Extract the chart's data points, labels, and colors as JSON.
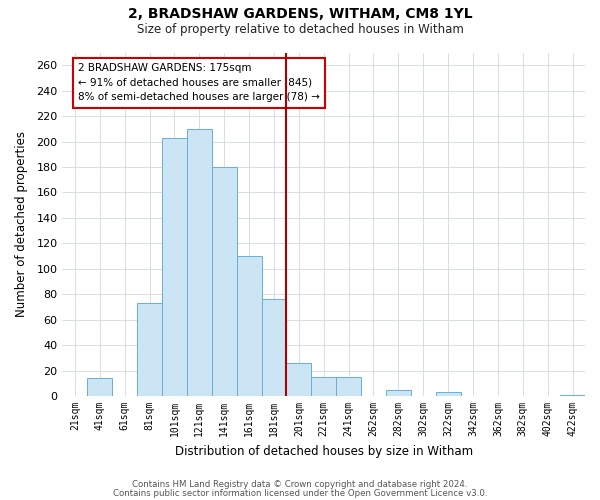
{
  "title": "2, BRADSHAW GARDENS, WITHAM, CM8 1YL",
  "subtitle": "Size of property relative to detached houses in Witham",
  "xlabel": "Distribution of detached houses by size in Witham",
  "ylabel": "Number of detached properties",
  "bar_color": "#cce5f5",
  "bar_edge_color": "#6aaed6",
  "categories": [
    "21sqm",
    "41sqm",
    "61sqm",
    "81sqm",
    "101sqm",
    "121sqm",
    "141sqm",
    "161sqm",
    "181sqm",
    "201sqm",
    "221sqm",
    "241sqm",
    "262sqm",
    "282sqm",
    "302sqm",
    "322sqm",
    "342sqm",
    "362sqm",
    "382sqm",
    "402sqm",
    "422sqm"
  ],
  "values": [
    0,
    14,
    0,
    73,
    203,
    210,
    180,
    110,
    76,
    26,
    15,
    15,
    0,
    5,
    0,
    3,
    0,
    0,
    0,
    0,
    1
  ],
  "ylim": [
    0,
    270
  ],
  "yticks": [
    0,
    20,
    40,
    60,
    80,
    100,
    120,
    140,
    160,
    180,
    200,
    220,
    240,
    260
  ],
  "vline_x": 8.5,
  "vline_color": "#aa0000",
  "annotation_title": "2 BRADSHAW GARDENS: 175sqm",
  "annotation_line1": "← 91% of detached houses are smaller (845)",
  "annotation_line2": "8% of semi-detached houses are larger (78) →",
  "annotation_box_color": "#ffffff",
  "annotation_box_edge": "#cc0000",
  "footer1": "Contains HM Land Registry data © Crown copyright and database right 2024.",
  "footer2": "Contains public sector information licensed under the Open Government Licence v3.0.",
  "background_color": "#ffffff",
  "grid_color": "#d0d8e4"
}
